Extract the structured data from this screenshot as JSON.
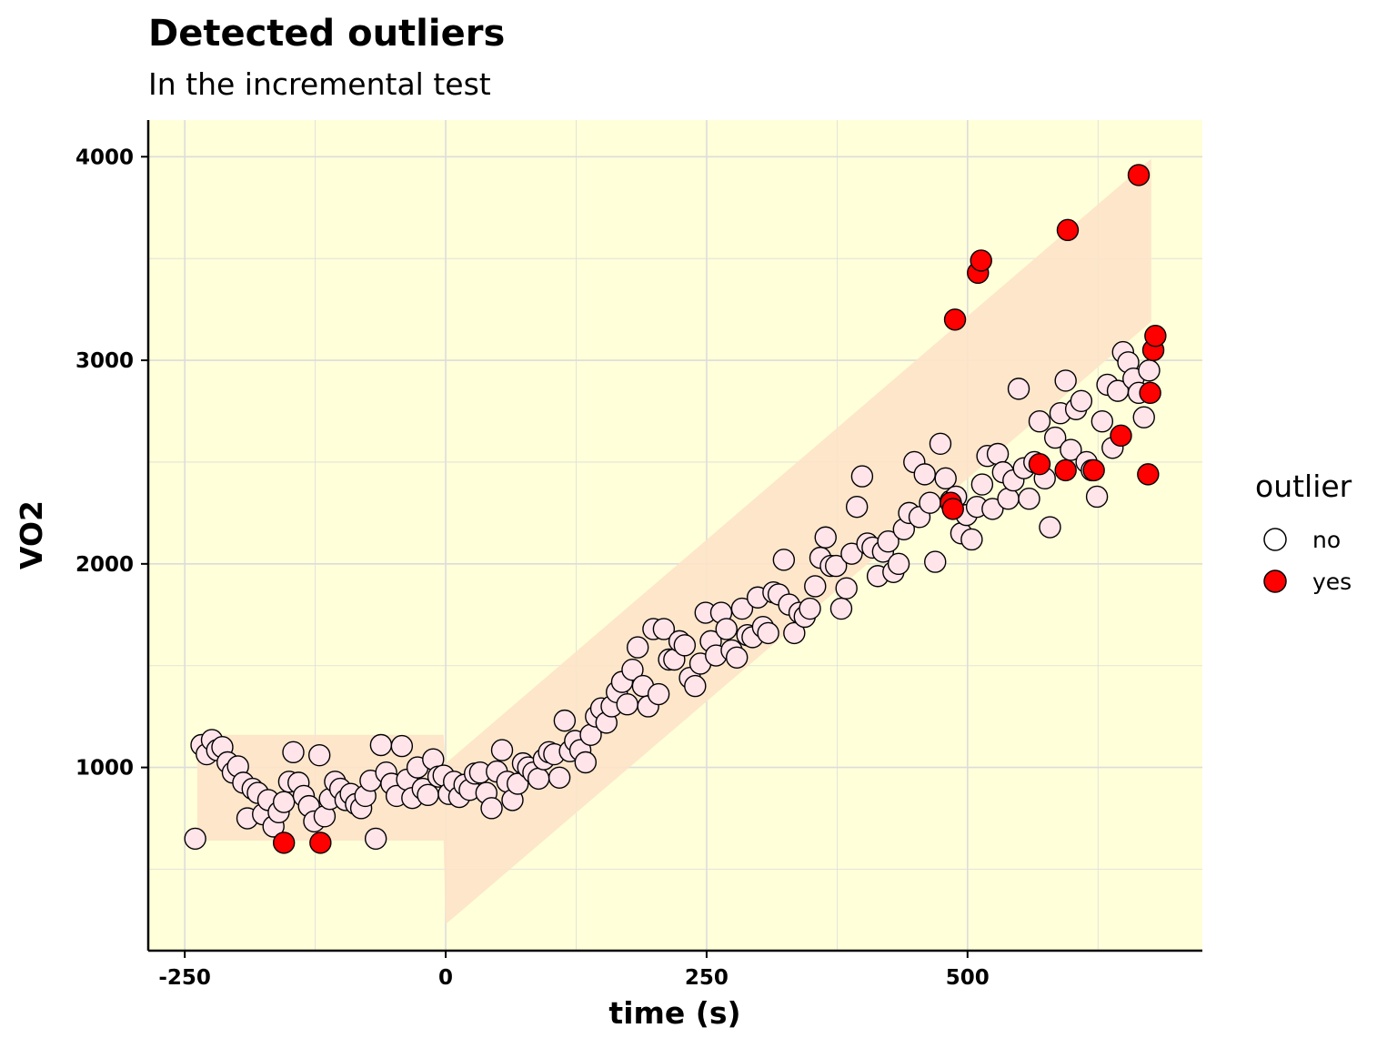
{
  "chart_data": {
    "type": "scatter",
    "title": "Detected outliers",
    "subtitle": "In the incremental test",
    "xlabel": "time (s)",
    "ylabel": "VO2",
    "xlim": [
      -285,
      725
    ],
    "ylim": [
      100,
      4180
    ],
    "xticks": [
      {
        "value": -250,
        "label": "-250"
      },
      {
        "value": 0,
        "label": "0"
      },
      {
        "value": 250,
        "label": "250"
      },
      {
        "value": 500,
        "label": "500"
      }
    ],
    "yticks": [
      {
        "value": 1000,
        "label": "1000"
      },
      {
        "value": 2000,
        "label": "2000"
      },
      {
        "value": 3000,
        "label": "3000"
      },
      {
        "value": 4000,
        "label": "4000"
      }
    ],
    "grid": true,
    "background_color": "#ffffd9",
    "band_color": "#fde3c8",
    "prediction_band": [
      {
        "x": -238,
        "low": 640,
        "high": 1160
      },
      {
        "x": -2,
        "low": 640,
        "high": 1160
      },
      {
        "x": 0,
        "low": 230,
        "high": 1020
      },
      {
        "x": 676,
        "low": 3190,
        "high": 3990
      }
    ],
    "legend": {
      "title": "outlier",
      "position": "right",
      "entries": [
        {
          "label": "no",
          "color": "#ffffff"
        },
        {
          "label": "yes",
          "color": "#ff0000"
        }
      ]
    },
    "series": [
      {
        "name": "no",
        "color": "#ffe4ea",
        "points": [
          [
            -240,
            650
          ],
          [
            -234,
            1110
          ],
          [
            -229,
            1065
          ],
          [
            -224,
            1135
          ],
          [
            -219,
            1085
          ],
          [
            -214,
            1100
          ],
          [
            -209,
            1025
          ],
          [
            -204,
            975
          ],
          [
            -199,
            1005
          ],
          [
            -194,
            925
          ],
          [
            -190,
            750
          ],
          [
            -185,
            895
          ],
          [
            -180,
            875
          ],
          [
            -175,
            770
          ],
          [
            -170,
            840
          ],
          [
            -165,
            710
          ],
          [
            -160,
            780
          ],
          [
            -155,
            830
          ],
          [
            -150,
            930
          ],
          [
            -146,
            1075
          ],
          [
            -141,
            925
          ],
          [
            -136,
            860
          ],
          [
            -131,
            810
          ],
          [
            -126,
            735
          ],
          [
            -121,
            1060
          ],
          [
            -116,
            760
          ],
          [
            -111,
            845
          ],
          [
            -106,
            930
          ],
          [
            -101,
            895
          ],
          [
            -96,
            840
          ],
          [
            -91,
            870
          ],
          [
            -86,
            820
          ],
          [
            -81,
            800
          ],
          [
            -77,
            860
          ],
          [
            -72,
            935
          ],
          [
            -67,
            650
          ],
          [
            -62,
            1110
          ],
          [
            -57,
            975
          ],
          [
            -52,
            920
          ],
          [
            -47,
            860
          ],
          [
            -42,
            1105
          ],
          [
            -37,
            940
          ],
          [
            -32,
            850
          ],
          [
            -27,
            1000
          ],
          [
            -22,
            895
          ],
          [
            -17,
            865
          ],
          [
            -12,
            1040
          ],
          [
            -7,
            955
          ],
          [
            -2,
            960
          ],
          [
            3,
            870
          ],
          [
            8,
            930
          ],
          [
            13,
            855
          ],
          [
            18,
            915
          ],
          [
            23,
            890
          ],
          [
            28,
            970
          ],
          [
            33,
            975
          ],
          [
            39,
            875
          ],
          [
            44,
            800
          ],
          [
            49,
            980
          ],
          [
            54,
            1085
          ],
          [
            59,
            930
          ],
          [
            64,
            840
          ],
          [
            69,
            920
          ],
          [
            74,
            1020
          ],
          [
            79,
            1000
          ],
          [
            84,
            975
          ],
          [
            89,
            945
          ],
          [
            94,
            1040
          ],
          [
            99,
            1075
          ],
          [
            104,
            1065
          ],
          [
            109,
            950
          ],
          [
            114,
            1230
          ],
          [
            119,
            1080
          ],
          [
            124,
            1130
          ],
          [
            129,
            1085
          ],
          [
            134,
            1025
          ],
          [
            139,
            1160
          ],
          [
            144,
            1250
          ],
          [
            149,
            1290
          ],
          [
            154,
            1220
          ],
          [
            159,
            1300
          ],
          [
            164,
            1370
          ],
          [
            169,
            1420
          ],
          [
            174,
            1310
          ],
          [
            179,
            1480
          ],
          [
            184,
            1590
          ],
          [
            189,
            1400
          ],
          [
            194,
            1300
          ],
          [
            199,
            1680
          ],
          [
            204,
            1360
          ],
          [
            209,
            1680
          ],
          [
            214,
            1530
          ],
          [
            219,
            1530
          ],
          [
            224,
            1620
          ],
          [
            229,
            1600
          ],
          [
            234,
            1440
          ],
          [
            239,
            1400
          ],
          [
            244,
            1510
          ],
          [
            249,
            1760
          ],
          [
            254,
            1620
          ],
          [
            259,
            1550
          ],
          [
            264,
            1760
          ],
          [
            269,
            1680
          ],
          [
            274,
            1575
          ],
          [
            279,
            1540
          ],
          [
            284,
            1780
          ],
          [
            289,
            1650
          ],
          [
            294,
            1640
          ],
          [
            299,
            1835
          ],
          [
            304,
            1690
          ],
          [
            309,
            1660
          ],
          [
            314,
            1860
          ],
          [
            319,
            1850
          ],
          [
            324,
            2020
          ],
          [
            329,
            1800
          ],
          [
            334,
            1660
          ],
          [
            339,
            1760
          ],
          [
            344,
            1740
          ],
          [
            349,
            1780
          ],
          [
            354,
            1890
          ],
          [
            359,
            2030
          ],
          [
            364,
            2130
          ],
          [
            369,
            1990
          ],
          [
            374,
            1990
          ],
          [
            379,
            1780
          ],
          [
            384,
            1880
          ],
          [
            389,
            2050
          ],
          [
            394,
            2280
          ],
          [
            399,
            2430
          ],
          [
            404,
            2100
          ],
          [
            409,
            2080
          ],
          [
            414,
            1940
          ],
          [
            419,
            2060
          ],
          [
            424,
            2110
          ],
          [
            429,
            1960
          ],
          [
            434,
            2000
          ],
          [
            439,
            2170
          ],
          [
            444,
            2250
          ],
          [
            449,
            2500
          ],
          [
            454,
            2230
          ],
          [
            459,
            2440
          ],
          [
            464,
            2300
          ],
          [
            469,
            2010
          ],
          [
            474,
            2590
          ],
          [
            479,
            2420
          ],
          [
            484,
            2310
          ],
          [
            489,
            2330
          ],
          [
            494,
            2150
          ],
          [
            499,
            2240
          ],
          [
            504,
            2120
          ],
          [
            509,
            2280
          ],
          [
            514,
            2390
          ],
          [
            519,
            2530
          ],
          [
            524,
            2270
          ],
          [
            529,
            2540
          ],
          [
            534,
            2450
          ],
          [
            539,
            2320
          ],
          [
            544,
            2410
          ],
          [
            549,
            2860
          ],
          [
            554,
            2470
          ],
          [
            559,
            2320
          ],
          [
            564,
            2500
          ],
          [
            569,
            2700
          ],
          [
            574,
            2420
          ],
          [
            579,
            2180
          ],
          [
            584,
            2620
          ],
          [
            589,
            2740
          ],
          [
            594,
            2900
          ],
          [
            599,
            2560
          ],
          [
            604,
            2760
          ],
          [
            609,
            2800
          ],
          [
            614,
            2500
          ],
          [
            619,
            2460
          ],
          [
            624,
            2330
          ],
          [
            629,
            2700
          ],
          [
            634,
            2880
          ],
          [
            639,
            2570
          ],
          [
            644,
            2850
          ],
          [
            649,
            3040
          ],
          [
            654,
            2990
          ],
          [
            659,
            2910
          ],
          [
            664,
            2840
          ],
          [
            669,
            2720
          ],
          [
            674,
            2950
          ]
        ]
      },
      {
        "name": "yes",
        "color": "#ff0000",
        "points": [
          [
            -155,
            630
          ],
          [
            -120,
            630
          ],
          [
            484,
            2300
          ],
          [
            486,
            2270
          ],
          [
            488,
            3200
          ],
          [
            510,
            3430
          ],
          [
            513,
            3490
          ],
          [
            569,
            2490
          ],
          [
            594,
            2460
          ],
          [
            596,
            3640
          ],
          [
            621,
            2460
          ],
          [
            647,
            2630
          ],
          [
            664,
            3910
          ],
          [
            673,
            2440
          ],
          [
            675,
            2840
          ],
          [
            678,
            3050
          ],
          [
            680,
            3120
          ]
        ]
      }
    ]
  }
}
